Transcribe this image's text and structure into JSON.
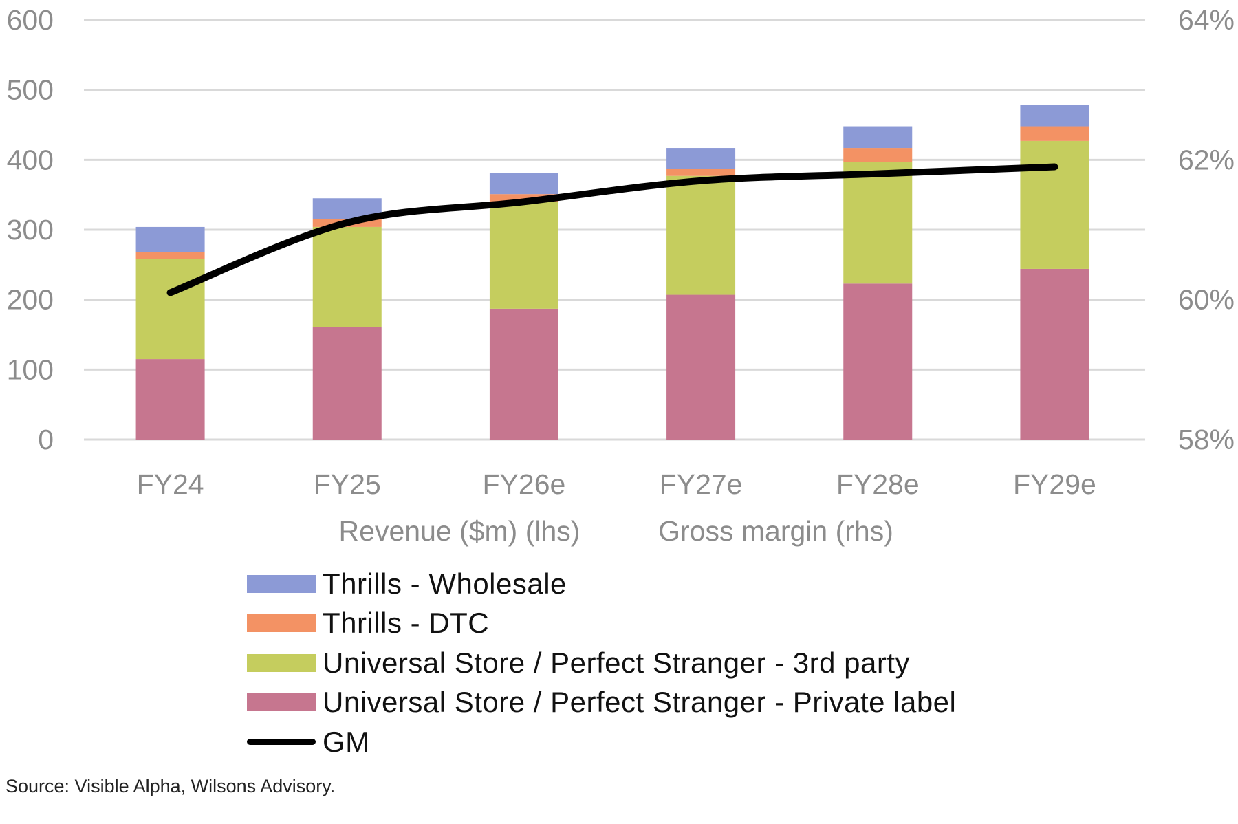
{
  "chart_data": {
    "type": "bar",
    "stacked": true,
    "categories": [
      "FY24",
      "FY25",
      "FY26e",
      "FY27e",
      "FY28e",
      "FY29e"
    ],
    "series": [
      {
        "name": "Universal Store / Perfect Stranger - Private label",
        "color": "#c6768f",
        "values": [
          115,
          161,
          187,
          207,
          223,
          244
        ]
      },
      {
        "name": "Universal Store / Perfect Stranger - 3rd party",
        "color": "#c5cd5e",
        "values": [
          143,
          143,
          153,
          170,
          174,
          183
        ]
      },
      {
        "name": "Thrills - DTC",
        "color": "#f39264",
        "values": [
          10,
          11,
          11,
          10,
          20,
          21
        ]
      },
      {
        "name": "Thrills - Wholesale",
        "color": "#8c9ad6",
        "values": [
          36,
          30,
          30,
          30,
          31,
          31
        ]
      }
    ],
    "line_series": {
      "name": "GM",
      "color": "#000000",
      "axis": "right",
      "values": [
        60.1,
        61.1,
        61.4,
        61.7,
        61.8,
        61.9
      ]
    },
    "left_axis": {
      "label": "Revenue ($m) (lhs)",
      "ylim": [
        0,
        600
      ],
      "ticks": [
        "0",
        "100",
        "200",
        "300",
        "400",
        "500",
        "600"
      ]
    },
    "right_axis": {
      "label": "Gross margin (rhs)",
      "ylim": [
        58,
        64
      ],
      "ticks": [
        "58%",
        "60%",
        "62%",
        "64%"
      ]
    },
    "grid": true,
    "legend_position": "bottom-left",
    "legend_order": [
      "Thrills - Wholesale",
      "Thrills - DTC",
      "Universal Store / Perfect Stranger - 3rd party",
      "Universal Store / Perfect Stranger - Private label",
      "GM"
    ]
  },
  "source": "Source: Visible Alpha, Wilsons Advisory."
}
